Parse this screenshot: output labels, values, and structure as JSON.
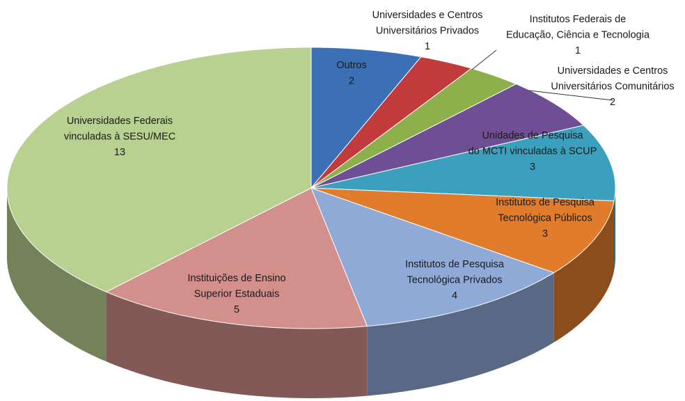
{
  "chart_data": {
    "type": "pie",
    "categories": [
      [
        "Outros"
      ],
      [
        "Universidades e Centros",
        "Universitários Privados"
      ],
      [
        "Institutos Federais de",
        "Educação, Ciência e Tecnologia"
      ],
      [
        "Universidades e Centros",
        "Universitários Comunitários"
      ],
      [
        "Unidades de Pesquisa",
        "do MCTI vinculadas à SCUP"
      ],
      [
        "Institutos de Pesquisa",
        "Tecnológica Públicos"
      ],
      [
        "Institutos de Pesquisa",
        "Tecnológica Privados"
      ],
      [
        "Instituições de Ensino",
        "Superior Estaduais"
      ],
      [
        "Universidades Federais",
        "vinculadas à SESU/MEC"
      ]
    ],
    "values": [
      2,
      1,
      1,
      2,
      3,
      3,
      4,
      5,
      13
    ],
    "colors": [
      "#3b6fb6",
      "#c23b3c",
      "#8db04a",
      "#6e4f95",
      "#3aa0be",
      "#e07c2b",
      "#90aad7",
      "#d38f8c",
      "#b9d190"
    ]
  }
}
